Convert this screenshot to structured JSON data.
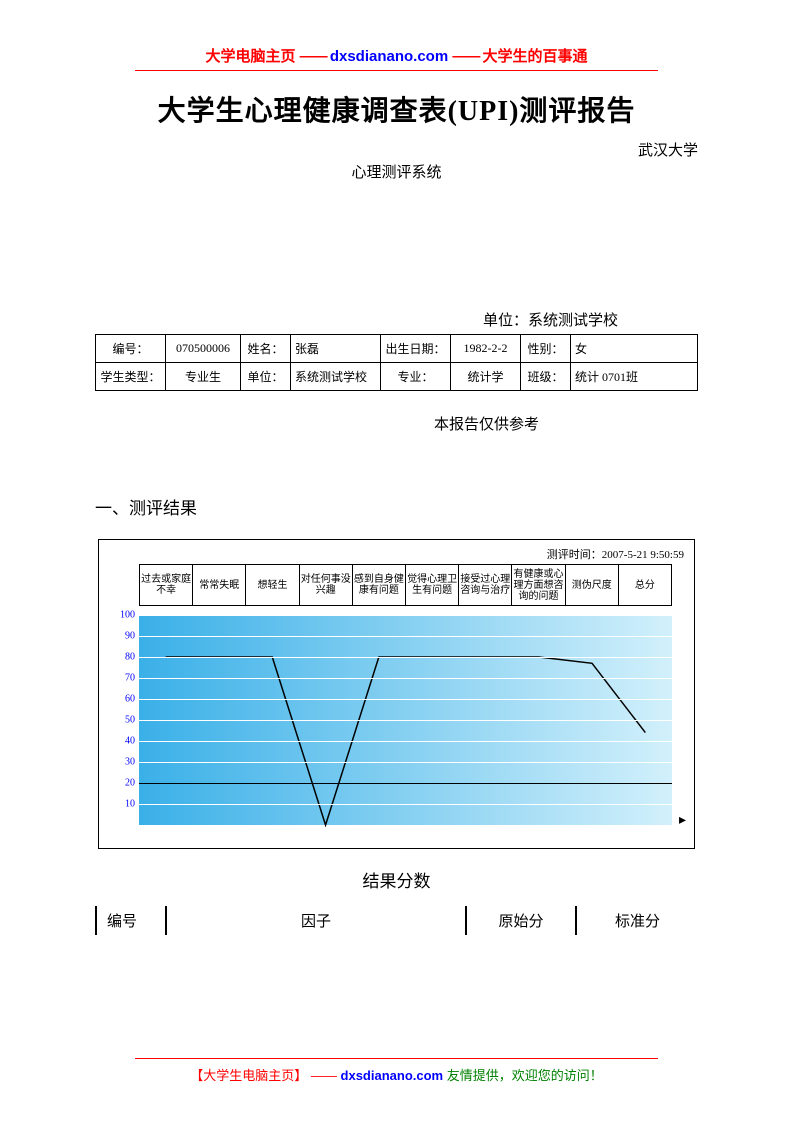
{
  "header": {
    "left": "大学电脑主页",
    "dash": "——",
    "domain": "dxsdianano.com",
    "right": "大学生的百事通"
  },
  "title": "大学生心理健康调查表(UPI)测评报告",
  "university": "武汉大学",
  "system": "心理测评系统",
  "unit_label": "单位：",
  "unit_value": "系统测试学校",
  "info": {
    "r1": {
      "c1_lbl": "编号：",
      "c1_val": "070500006",
      "c2_lbl": "姓名：",
      "c2_val": "张磊",
      "c3_lbl": "出生日期：",
      "c3_val": "1982-2-2",
      "c4_lbl": "性别：",
      "c4_val": "女"
    },
    "r2": {
      "c1_lbl": "学生类型：",
      "c1_val": "专业生",
      "c2_lbl": "单位：",
      "c2_val": "系统测试学校",
      "c3_lbl": "专业：",
      "c3_val": "统计学",
      "c4_lbl": "班级：",
      "c4_val": "统计 0701班"
    }
  },
  "note": "本报告仅供参考",
  "section1": "一、测评结果",
  "chart": {
    "time_label": "测评时间：",
    "time_value": "2007-5-21 9:50:59",
    "categories": [
      "过去或家庭不幸",
      "常常失眠",
      "想轻生",
      "对任何事没兴趣",
      "感到自身健康有问题",
      "觉得心理卫生有问题",
      "接受过心理咨询与治疗",
      "有健康或心理方面想咨询的问题",
      "测伪尺度",
      "总分"
    ],
    "y_ticks": [
      10,
      20,
      30,
      40,
      50,
      60,
      70,
      80,
      90,
      100
    ],
    "ymax": 100,
    "values": [
      80,
      80,
      80,
      0,
      80,
      80,
      80,
      80,
      77,
      44
    ],
    "shadow_y": 20,
    "line_color": "#000000",
    "grid_color": "#ffffff",
    "bg_from": "#3ab0e8",
    "bg_to": "#d2f0fb",
    "ylabel_color": "#0000ff"
  },
  "chart_caption": "结果分数",
  "result_headers": [
    "编号",
    "因子",
    "原始分",
    "标准分"
  ],
  "footer": {
    "bracket_l": "【",
    "site": "大学生电脑主页",
    "bracket_r": "】",
    "dash": "——",
    "domain": "dxsdianano.com",
    "tail": "友情提供，欢迎您的访问！"
  }
}
